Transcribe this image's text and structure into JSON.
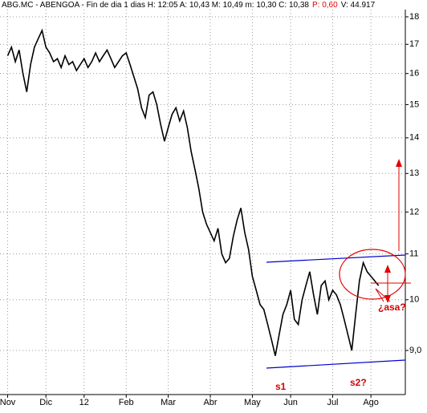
{
  "chart_data": {
    "type": "line",
    "title": "ABG.MC - ABENGOA - Fin de dia 1 dias  H: 12:05  A: 10,43  M: 10,49  m: 10,30  C: 10,38",
    "change": "P: 0,60",
    "volume": "V: 44.917",
    "color": "#000000",
    "log_scale": true,
    "grid": true,
    "values": [
      16.6,
      16.9,
      16.4,
      16.8,
      16.0,
      15.4,
      16.3,
      16.9,
      17.2,
      17.5,
      16.9,
      16.7,
      16.4,
      16.5,
      16.2,
      16.6,
      16.3,
      16.4,
      16.1,
      16.3,
      16.5,
      16.2,
      16.4,
      16.7,
      16.4,
      16.6,
      16.8,
      16.5,
      16.2,
      16.4,
      16.6,
      16.7,
      16.3,
      15.9,
      15.5,
      14.9,
      14.6,
      15.3,
      15.4,
      15.0,
      14.4,
      13.9,
      14.3,
      14.7,
      14.9,
      14.5,
      14.8,
      14.3,
      13.6,
      13.1,
      12.6,
      12.0,
      11.7,
      11.5,
      11.3,
      11.6,
      11.0,
      10.8,
      10.9,
      11.4,
      11.8,
      12.1,
      11.5,
      11.1,
      10.5,
      10.2,
      9.9,
      9.8,
      9.5,
      9.2,
      8.9,
      9.3,
      9.7,
      9.9,
      10.2,
      9.6,
      9.5,
      10.0,
      10.3,
      10.6,
      10.1,
      9.7,
      10.3,
      10.4,
      10.0,
      10.2,
      10.1,
      9.9,
      9.6,
      9.3,
      9.0,
      9.7,
      10.4,
      10.8,
      10.6,
      10.5,
      10.4,
      10.3
    ],
    "xlim": [
      -2,
      104
    ],
    "xticks": [
      {
        "value": 0,
        "label": "Nov"
      },
      {
        "value": 10,
        "label": "Dic"
      },
      {
        "value": 20,
        "label": "12"
      },
      {
        "value": 31,
        "label": "Feb"
      },
      {
        "value": 42,
        "label": "Mar"
      },
      {
        "value": 53,
        "label": "Abr"
      },
      {
        "value": 64,
        "label": "May"
      },
      {
        "value": 74,
        "label": "Jun"
      },
      {
        "value": 85,
        "label": "Jul"
      },
      {
        "value": 95,
        "label": "Ago"
      }
    ],
    "ylim": [
      8.24,
      18.64
    ],
    "yticks": [
      18,
      17,
      16,
      15,
      14,
      13,
      12,
      11,
      10,
      {
        "value": 9,
        "label": "9,0"
      }
    ],
    "annotations": [
      "s1",
      "s2?",
      "¿asa?"
    ]
  }
}
